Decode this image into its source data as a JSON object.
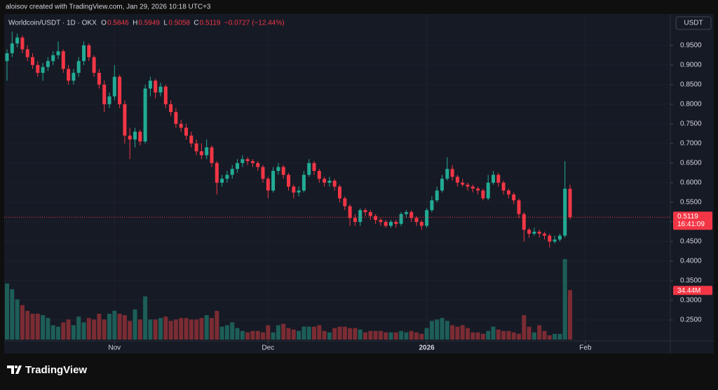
{
  "chart_data": {
    "type": "candlestick",
    "attribution": "aloisov created with TradingView.com, Jan 29, 2026 10:18 UTC+3",
    "title": "Worldcoin/USDT · 1D · OKX",
    "ohlc_keys": [
      "O",
      "H",
      "L",
      "C"
    ],
    "change": "−0.0727 (−12.44%)",
    "quote_currency": "USDT",
    "countdown": "16:41:09",
    "last_volume_label": "34.44M",
    "brand": "TradingView",
    "up_color": "#22ab94",
    "down_color": "#f23645",
    "volume_up_color": "#1d5e58",
    "volume_down_color": "#7b2c33",
    "grid": true,
    "ylim": [
      0.2,
      1.03
    ],
    "yticks": [
      {
        "value": 0.25,
        "label": "0.2500"
      },
      {
        "value": 0.3,
        "label": "0.3000"
      },
      {
        "value": 0.35,
        "label": "0.3500"
      },
      {
        "value": 0.4,
        "label": "0.4000"
      },
      {
        "value": 0.45,
        "label": "0.4500"
      },
      {
        "value": 0.5,
        "label": "0.5000"
      },
      {
        "value": 0.55,
        "label": "0.5500"
      },
      {
        "value": 0.6,
        "label": "0.6000"
      },
      {
        "value": 0.65,
        "label": "0.6500"
      },
      {
        "value": 0.7,
        "label": "0.7000"
      },
      {
        "value": 0.75,
        "label": "0.7500"
      },
      {
        "value": 0.8,
        "label": "0.8000"
      },
      {
        "value": 0.85,
        "label": "0.8500"
      },
      {
        "value": 0.9,
        "label": "0.9000"
      },
      {
        "value": 0.95,
        "label": "0.9500"
      }
    ],
    "xticks": [
      {
        "value": 21,
        "label": "Nov"
      },
      {
        "value": 51,
        "label": "Dec"
      },
      {
        "value": 82,
        "label": "2026"
      },
      {
        "value": 113,
        "label": "Feb"
      }
    ],
    "open": [
      0.91,
      0.93,
      0.955,
      0.97,
      0.94,
      0.92,
      0.9,
      0.88,
      0.895,
      0.91,
      0.925,
      0.935,
      0.89,
      0.86,
      0.88,
      0.91,
      0.95,
      0.92,
      0.88,
      0.85,
      0.8,
      0.82,
      0.87,
      0.8,
      0.72,
      0.71,
      0.73,
      0.705,
      0.84,
      0.86,
      0.83,
      0.845,
      0.8,
      0.78,
      0.75,
      0.74,
      0.72,
      0.7,
      0.68,
      0.67,
      0.69,
      0.65,
      0.6,
      0.61,
      0.62,
      0.635,
      0.65,
      0.66,
      0.655,
      0.65,
      0.64,
      0.61,
      0.58,
      0.63,
      0.64,
      0.62,
      0.59,
      0.575,
      0.58,
      0.62,
      0.65,
      0.63,
      0.61,
      0.6,
      0.605,
      0.59,
      0.56,
      0.54,
      0.51,
      0.5,
      0.53,
      0.525,
      0.515,
      0.505,
      0.5,
      0.49,
      0.5,
      0.495,
      0.52,
      0.525,
      0.51,
      0.5,
      0.49,
      0.53,
      0.555,
      0.58,
      0.61,
      0.635,
      0.615,
      0.6,
      0.595,
      0.59,
      0.585,
      0.58,
      0.56,
      0.6,
      0.62,
      0.6,
      0.58,
      0.57,
      0.555,
      0.52,
      0.48,
      0.47,
      0.475,
      0.47,
      0.465,
      0.45,
      0.455,
      0.465,
      0.5846
    ],
    "high": [
      0.94,
      0.985,
      0.98,
      0.975,
      0.95,
      0.93,
      0.91,
      0.905,
      0.92,
      0.935,
      0.96,
      0.94,
      0.9,
      0.89,
      0.92,
      0.96,
      0.955,
      0.925,
      0.89,
      0.86,
      0.83,
      0.9,
      0.875,
      0.81,
      0.74,
      0.74,
      0.735,
      0.85,
      0.87,
      0.865,
      0.855,
      0.85,
      0.81,
      0.79,
      0.76,
      0.75,
      0.73,
      0.71,
      0.7,
      0.71,
      0.695,
      0.655,
      0.62,
      0.63,
      0.645,
      0.66,
      0.67,
      0.665,
      0.66,
      0.655,
      0.645,
      0.615,
      0.64,
      0.65,
      0.645,
      0.625,
      0.595,
      0.59,
      0.63,
      0.66,
      0.655,
      0.635,
      0.615,
      0.615,
      0.61,
      0.595,
      0.565,
      0.545,
      0.52,
      0.535,
      0.535,
      0.53,
      0.52,
      0.51,
      0.505,
      0.505,
      0.505,
      0.525,
      0.53,
      0.53,
      0.515,
      0.505,
      0.535,
      0.565,
      0.59,
      0.62,
      0.665,
      0.645,
      0.62,
      0.61,
      0.6,
      0.595,
      0.59,
      0.585,
      0.62,
      0.63,
      0.625,
      0.605,
      0.585,
      0.575,
      0.56,
      0.525,
      0.485,
      0.485,
      0.48,
      0.475,
      0.47,
      0.465,
      0.47,
      0.655,
      0.5949
    ],
    "low": [
      0.86,
      0.92,
      0.945,
      0.93,
      0.91,
      0.89,
      0.87,
      0.86,
      0.885,
      0.9,
      0.915,
      0.88,
      0.85,
      0.85,
      0.87,
      0.9,
      0.91,
      0.87,
      0.84,
      0.78,
      0.79,
      0.81,
      0.79,
      0.7,
      0.66,
      0.69,
      0.695,
      0.7,
      0.82,
      0.815,
      0.82,
      0.79,
      0.77,
      0.74,
      0.73,
      0.71,
      0.69,
      0.67,
      0.66,
      0.66,
      0.64,
      0.57,
      0.59,
      0.6,
      0.61,
      0.625,
      0.64,
      0.645,
      0.64,
      0.63,
      0.6,
      0.56,
      0.575,
      0.62,
      0.61,
      0.58,
      0.56,
      0.565,
      0.575,
      0.615,
      0.62,
      0.6,
      0.59,
      0.59,
      0.58,
      0.55,
      0.53,
      0.49,
      0.49,
      0.49,
      0.515,
      0.505,
      0.495,
      0.49,
      0.485,
      0.485,
      0.485,
      0.49,
      0.51,
      0.5,
      0.49,
      0.48,
      0.485,
      0.525,
      0.55,
      0.575,
      0.605,
      0.605,
      0.59,
      0.59,
      0.58,
      0.575,
      0.57,
      0.555,
      0.555,
      0.595,
      0.59,
      0.57,
      0.56,
      0.545,
      0.51,
      0.45,
      0.46,
      0.465,
      0.46,
      0.455,
      0.435,
      0.445,
      0.45,
      0.46,
      0.5058
    ],
    "close": [
      0.93,
      0.955,
      0.97,
      0.94,
      0.92,
      0.9,
      0.88,
      0.895,
      0.91,
      0.925,
      0.935,
      0.89,
      0.86,
      0.88,
      0.91,
      0.95,
      0.92,
      0.88,
      0.85,
      0.8,
      0.82,
      0.87,
      0.8,
      0.72,
      0.71,
      0.73,
      0.705,
      0.84,
      0.86,
      0.83,
      0.845,
      0.8,
      0.78,
      0.75,
      0.74,
      0.72,
      0.7,
      0.68,
      0.67,
      0.69,
      0.65,
      0.6,
      0.61,
      0.62,
      0.635,
      0.65,
      0.66,
      0.655,
      0.65,
      0.64,
      0.61,
      0.58,
      0.63,
      0.64,
      0.62,
      0.59,
      0.575,
      0.58,
      0.62,
      0.65,
      0.63,
      0.61,
      0.6,
      0.605,
      0.59,
      0.56,
      0.54,
      0.51,
      0.5,
      0.53,
      0.525,
      0.515,
      0.505,
      0.5,
      0.49,
      0.5,
      0.495,
      0.52,
      0.525,
      0.51,
      0.5,
      0.49,
      0.53,
      0.555,
      0.58,
      0.61,
      0.635,
      0.615,
      0.6,
      0.595,
      0.59,
      0.585,
      0.58,
      0.56,
      0.6,
      0.62,
      0.6,
      0.58,
      0.57,
      0.555,
      0.52,
      0.48,
      0.47,
      0.475,
      0.47,
      0.465,
      0.45,
      0.455,
      0.465,
      0.5846,
      0.5119
    ],
    "volume": [
      39,
      35,
      28,
      24,
      20,
      18,
      18,
      17,
      15,
      10,
      9,
      12,
      14,
      10,
      16,
      12,
      15,
      14,
      18,
      14,
      18,
      20,
      18,
      17,
      13,
      21,
      14,
      30,
      14,
      14,
      15,
      16,
      13,
      14,
      15,
      15,
      14,
      14,
      15,
      17,
      15,
      20,
      9,
      10,
      12,
      8,
      6,
      5,
      6,
      6,
      5,
      10,
      5,
      10,
      11,
      8,
      7,
      6,
      9,
      9,
      9,
      10,
      6,
      5,
      8,
      9,
      9,
      8,
      8,
      7,
      5,
      6,
      6,
      6,
      5,
      5,
      5,
      6,
      5,
      6,
      5,
      4,
      8,
      13,
      14,
      15,
      13,
      10,
      9,
      10,
      8,
      5,
      5,
      4,
      6,
      9,
      7,
      6,
      6,
      5,
      4,
      17,
      9,
      5,
      10,
      6,
      3,
      4,
      4,
      56,
      34.44
    ]
  }
}
